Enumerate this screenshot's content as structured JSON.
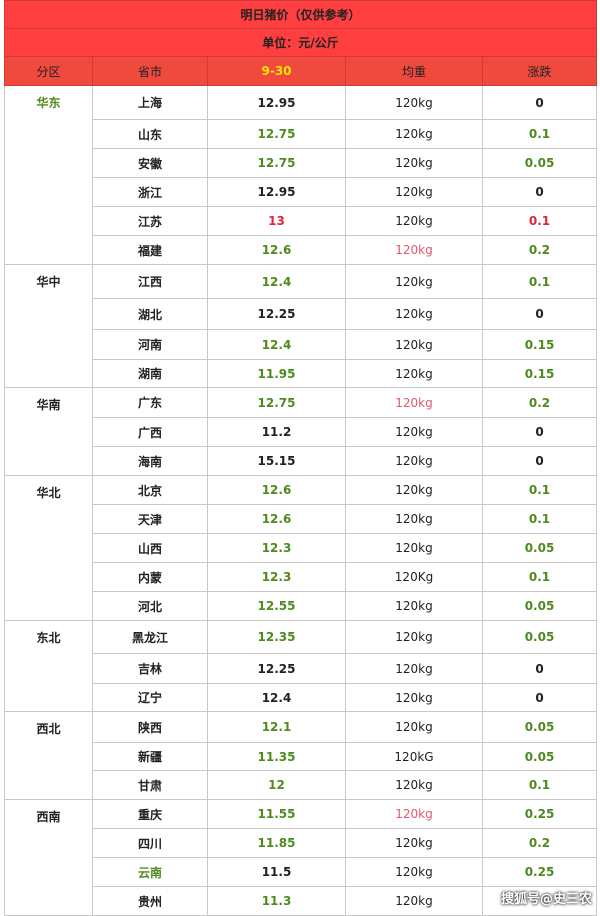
{
  "title": "明日猪价（仅供参考）",
  "unit": "单位：元/公斤",
  "headers": {
    "region": "分区",
    "province": "省市",
    "date": "9-30",
    "weight": "均重",
    "change": "涨跌"
  },
  "colors": {
    "header_bg": "#f04a3f",
    "title_bg": "#ff3f3f",
    "date_text": "#ffe600",
    "green": "#4e8a1f",
    "red": "#e0263a"
  },
  "rows": [
    {
      "region": "华东",
      "region_color": "green",
      "span": 6,
      "province": "上海",
      "price": "12.95",
      "price_color": "black",
      "weight": "120kg",
      "weight_color": "black",
      "change": "0",
      "change_color": "black",
      "h": 34
    },
    {
      "province": "山东",
      "price": "12.75",
      "price_color": "green",
      "weight": "120kg",
      "weight_color": "black",
      "change": "0.1",
      "change_color": "green",
      "h": 29
    },
    {
      "province": "安徽",
      "price": "12.75",
      "price_color": "green",
      "weight": "120kg",
      "weight_color": "black",
      "change": "0.05",
      "change_color": "green",
      "h": 29
    },
    {
      "province": "浙江",
      "price": "12.95",
      "price_color": "black",
      "weight": "120kg",
      "weight_color": "black",
      "change": "0",
      "change_color": "black",
      "h": 29
    },
    {
      "province": "江苏",
      "price": "13",
      "price_color": "red",
      "weight": "120kg",
      "weight_color": "black",
      "change": "0.1",
      "change_color": "red",
      "h": 29
    },
    {
      "province": "福建",
      "price": "12.6",
      "price_color": "green",
      "weight": "120kg",
      "weight_color": "pink",
      "change": "0.2",
      "change_color": "green",
      "h": 29
    },
    {
      "region": "华中",
      "region_color": "black",
      "span": 4,
      "province": "江西",
      "price": "12.4",
      "price_color": "green",
      "weight": "120kg",
      "weight_color": "black",
      "change": "0.1",
      "change_color": "green",
      "h": 34
    },
    {
      "province": "湖北",
      "price": "12.25",
      "price_color": "black",
      "weight": "120kg",
      "weight_color": "black",
      "change": "0",
      "change_color": "black",
      "h": 31
    },
    {
      "province": "河南",
      "price": "12.4",
      "price_color": "green",
      "weight": "120kg",
      "weight_color": "black",
      "change": "0.15",
      "change_color": "green",
      "h": 30
    },
    {
      "province": "湖南",
      "price": "11.95",
      "price_color": "green",
      "weight": "120kg",
      "weight_color": "black",
      "change": "0.15",
      "change_color": "green",
      "h": 28
    },
    {
      "region": "华南",
      "region_color": "black",
      "span": 3,
      "province": "广东",
      "price": "12.75",
      "price_color": "green",
      "weight": "120kg",
      "weight_color": "pink",
      "change": "0.2",
      "change_color": "green",
      "h": 30
    },
    {
      "province": "广西",
      "price": "11.2",
      "price_color": "black",
      "weight": "120kg",
      "weight_color": "black",
      "change": "0",
      "change_color": "black",
      "h": 29
    },
    {
      "province": "海南",
      "price": "15.15",
      "price_color": "black",
      "weight": "120kg",
      "weight_color": "black",
      "change": "0",
      "change_color": "black",
      "h": 29
    },
    {
      "region": "华北",
      "region_color": "black",
      "span": 5,
      "province": "北京",
      "price": "12.6",
      "price_color": "green",
      "weight": "120kg",
      "weight_color": "black",
      "change": "0.1",
      "change_color": "green",
      "h": 29
    },
    {
      "province": "天津",
      "price": "12.6",
      "price_color": "green",
      "weight": "120kg",
      "weight_color": "black",
      "change": "0.1",
      "change_color": "green",
      "h": 29
    },
    {
      "province": "山西",
      "price": "12.3",
      "price_color": "green",
      "weight": "120kg",
      "weight_color": "black",
      "change": "0.05",
      "change_color": "green",
      "h": 29
    },
    {
      "province": "内蒙",
      "price": "12.3",
      "price_color": "green",
      "weight": "120Kg",
      "weight_color": "black",
      "change": "0.1",
      "change_color": "green",
      "h": 29
    },
    {
      "province": "河北",
      "price": "12.55",
      "price_color": "green",
      "weight": "120kg",
      "weight_color": "black",
      "change": "0.05",
      "change_color": "green",
      "h": 29
    },
    {
      "region": "东北",
      "region_color": "black",
      "span": 3,
      "province": "黑龙江",
      "price": "12.35",
      "price_color": "green",
      "weight": "120kg",
      "weight_color": "black",
      "change": "0.05",
      "change_color": "green",
      "h": 33
    },
    {
      "province": "吉林",
      "price": "12.25",
      "price_color": "black",
      "weight": "120kg",
      "weight_color": "black",
      "change": "0",
      "change_color": "black",
      "h": 30
    },
    {
      "province": "辽宁",
      "price": "12.4",
      "price_color": "black",
      "weight": "120kg",
      "weight_color": "black",
      "change": "0",
      "change_color": "black",
      "h": 28
    },
    {
      "region": "西北",
      "region_color": "black",
      "span": 3,
      "province": "陕西",
      "price": "12.1",
      "price_color": "green",
      "weight": "120kg",
      "weight_color": "black",
      "change": "0.05",
      "change_color": "green",
      "h": 31
    },
    {
      "province": "新疆",
      "price": "11.35",
      "price_color": "green",
      "weight": "120kG",
      "weight_color": "black",
      "change": "0.05",
      "change_color": "green",
      "h": 28
    },
    {
      "province": "甘肃",
      "price": "12",
      "price_color": "green",
      "weight": "120kg",
      "weight_color": "black",
      "change": "0.1",
      "change_color": "green",
      "h": 29
    },
    {
      "region": "西南",
      "region_color": "black",
      "span": 4,
      "province": "重庆",
      "price": "11.55",
      "price_color": "green",
      "weight": "120kg",
      "weight_color": "pink",
      "change": "0.25",
      "change_color": "green",
      "h": 29
    },
    {
      "province": "四川",
      "price": "11.85",
      "price_color": "green",
      "weight": "120kg",
      "weight_color": "black",
      "change": "0.2",
      "change_color": "green",
      "h": 29
    },
    {
      "province": "云南",
      "province_color": "green",
      "price": "11.5",
      "price_color": "black",
      "weight": "120kg",
      "weight_color": "black",
      "change": "0.25",
      "change_color": "green",
      "h": 29
    },
    {
      "province": "贵州",
      "price": "11.3",
      "price_color": "green",
      "weight": "120kg",
      "weight_color": "black",
      "change": "",
      "change_color": "green",
      "h": 29
    }
  ],
  "watermark": "搜狐号@史三农"
}
